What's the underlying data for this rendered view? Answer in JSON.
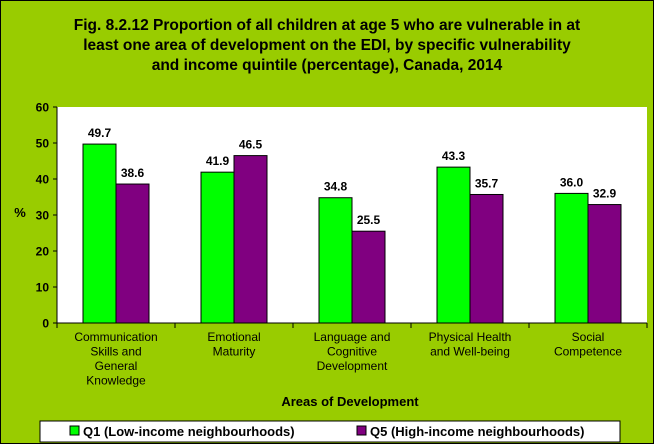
{
  "chart_data": {
    "type": "bar",
    "title_lines": [
      "Fig. 8.2.12 Proportion of all children at age 5 who are vulnerable in at",
      "least one area of development on the EDI, by specific vulnerability",
      "and income quintile (percentage), Canada, 2014"
    ],
    "xlabel": "Areas of Development",
    "ylabel": "%",
    "ylim": [
      0,
      60
    ],
    "yticks": [
      0,
      10,
      20,
      30,
      40,
      50,
      60
    ],
    "grid": false,
    "legend_position": "bottom",
    "categories": [
      [
        "Communication",
        "Skills and",
        "General",
        "Knowledge"
      ],
      [
        "Emotional",
        "Maturity"
      ],
      [
        "Language and",
        "Cognitive",
        "Development"
      ],
      [
        "Physical Health",
        "and Well-being"
      ],
      [
        "Social",
        "Competence"
      ]
    ],
    "series": [
      {
        "name": "Q1 (Low-income neighbourhoods)",
        "color": "#00ff00",
        "values": [
          49.7,
          41.9,
          34.8,
          43.3,
          36.0
        ],
        "labels": [
          "49.7",
          "41.9",
          "34.8",
          "43.3",
          "36.0"
        ]
      },
      {
        "name": "Q5 (High-income neighbourhoods)",
        "color": "#800080",
        "values": [
          38.6,
          46.5,
          25.5,
          35.7,
          32.9
        ],
        "labels": [
          "38.6",
          "46.5",
          "25.5",
          "35.7",
          "32.9"
        ]
      }
    ],
    "colors": {
      "background": "#99cc00",
      "plot_area": "#ffffff"
    }
  }
}
